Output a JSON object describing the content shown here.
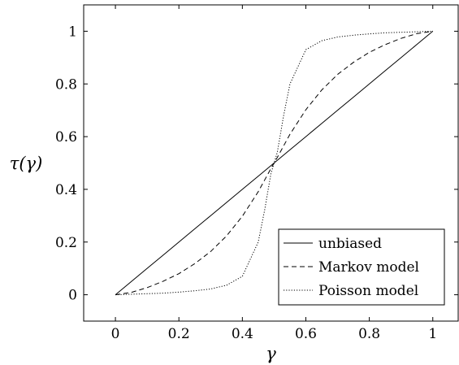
{
  "chart_data": {
    "type": "line",
    "xlabel": "γ",
    "ylabel": "τ(γ)",
    "xlim": [
      -0.1,
      1.08
    ],
    "ylim": [
      -0.1,
      1.1
    ],
    "xticks": [
      0,
      0.2,
      0.4,
      0.6,
      0.8,
      1
    ],
    "yticks": [
      0,
      0.2,
      0.4,
      0.6,
      0.8,
      1
    ],
    "xtick_labels": [
      "0",
      "0.2",
      "0.4",
      "0.6",
      "0.8",
      "1"
    ],
    "ytick_labels": [
      "0",
      "0.2",
      "0.4",
      "0.6",
      "0.8",
      "1"
    ],
    "grid": false,
    "legend_position": "bottom-right",
    "x": [
      0,
      0.05,
      0.1,
      0.15,
      0.2,
      0.25,
      0.3,
      0.35,
      0.4,
      0.45,
      0.47,
      0.49,
      0.5,
      0.51,
      0.53,
      0.55,
      0.6,
      0.65,
      0.7,
      0.75,
      0.8,
      0.85,
      0.9,
      0.95,
      1
    ],
    "series": [
      {
        "name": "unbiased",
        "style": "solid",
        "values": [
          0,
          0.05,
          0.1,
          0.15,
          0.2,
          0.25,
          0.3,
          0.35,
          0.4,
          0.45,
          0.47,
          0.49,
          0.5,
          0.51,
          0.53,
          0.55,
          0.6,
          0.65,
          0.7,
          0.75,
          0.8,
          0.85,
          0.9,
          0.95,
          1
        ]
      },
      {
        "name": "Markov model",
        "style": "dashed",
        "values": [
          0,
          0.009,
          0.027,
          0.051,
          0.08,
          0.118,
          0.164,
          0.223,
          0.298,
          0.391,
          0.435,
          0.479,
          0.5,
          0.521,
          0.565,
          0.609,
          0.702,
          0.777,
          0.836,
          0.882,
          0.92,
          0.949,
          0.973,
          0.991,
          1
        ]
      },
      {
        "name": "Poisson model",
        "style": "dotted",
        "values": [
          0,
          0.002,
          0.004,
          0.006,
          0.01,
          0.015,
          0.022,
          0.036,
          0.07,
          0.2,
          0.32,
          0.46,
          0.5,
          0.54,
          0.68,
          0.8,
          0.93,
          0.964,
          0.978,
          0.985,
          0.99,
          0.994,
          0.996,
          0.998,
          1
        ]
      }
    ]
  }
}
